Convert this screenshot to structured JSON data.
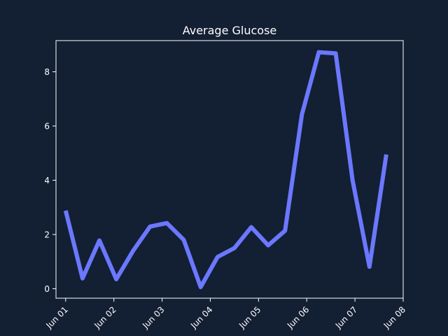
{
  "chart_data": {
    "type": "line",
    "title": "Average Glucose",
    "xlabel": "",
    "ylabel": "",
    "x_ticks": [
      "Jun 01",
      "Jun 02",
      "Jun 03",
      "Jun 04",
      "Jun 05",
      "Jun 06",
      "Jun 07",
      "Jun 08"
    ],
    "y_ticks": [
      0,
      2,
      4,
      6,
      8
    ],
    "xlim": [
      "2024-05-31T19:12",
      "2024-06-08T00:00"
    ],
    "ylim": [
      -0.35,
      9.15
    ],
    "grid": false,
    "colors": {
      "background": "#131f33",
      "line": "#6b78ff",
      "text": "#ffffff",
      "axis": "#ffffff"
    },
    "series": [
      {
        "x": [
          "2024-06-01T00:00",
          "2024-06-01T08:24",
          "2024-06-01T16:48",
          "2024-06-02T01:12",
          "2024-06-02T09:36",
          "2024-06-02T18:00",
          "2024-06-03T02:24",
          "2024-06-03T10:48",
          "2024-06-03T19:12",
          "2024-06-04T03:36",
          "2024-06-04T12:00",
          "2024-06-04T20:24",
          "2024-06-05T04:48",
          "2024-06-05T13:12",
          "2024-06-05T21:36",
          "2024-06-06T06:00",
          "2024-06-06T14:24",
          "2024-06-06T22:48",
          "2024-06-07T07:12",
          "2024-06-07T15:36"
        ],
        "values": [
          2.88,
          0.38,
          1.78,
          0.35,
          1.4,
          2.29,
          2.42,
          1.8,
          0.06,
          1.17,
          1.5,
          2.27,
          1.6,
          2.14,
          6.43,
          8.72,
          8.68,
          4.0,
          0.81,
          4.95
        ]
      }
    ]
  }
}
